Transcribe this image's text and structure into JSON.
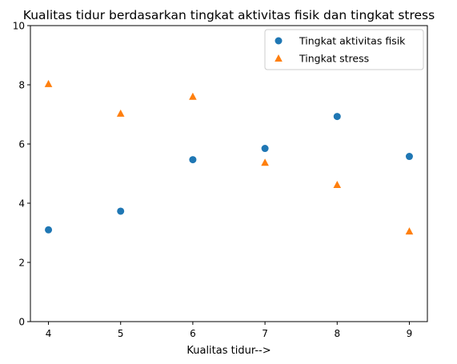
{
  "chart_data": {
    "type": "scatter",
    "title": "Kualitas tidur berdasarkan tingkat aktivitas fisik dan tingkat stress",
    "xlabel": "Kualitas tidur-->",
    "ylabel": "",
    "x": [
      4,
      5,
      6,
      7,
      8,
      9
    ],
    "xlim": [
      3.75,
      9.25
    ],
    "ylim": [
      0,
      10
    ],
    "x_ticks": [
      4,
      5,
      6,
      7,
      8,
      9
    ],
    "y_ticks": [
      0,
      2,
      4,
      6,
      8,
      10
    ],
    "grid": false,
    "legend_position": "top-right",
    "series": [
      {
        "name": "Tingkat aktivitas fisik",
        "marker": "circle",
        "color": "#1f77b4",
        "x": [
          4,
          5,
          6,
          7,
          8,
          9
        ],
        "y": [
          3.1,
          3.73,
          5.47,
          5.85,
          6.93,
          5.58
        ]
      },
      {
        "name": "Tingkat stress",
        "marker": "triangle",
        "color": "#ff7f0e",
        "x": [
          4,
          5,
          6,
          7,
          8,
          9
        ],
        "y": [
          8.03,
          7.03,
          7.6,
          5.37,
          4.62,
          3.05
        ]
      }
    ]
  }
}
